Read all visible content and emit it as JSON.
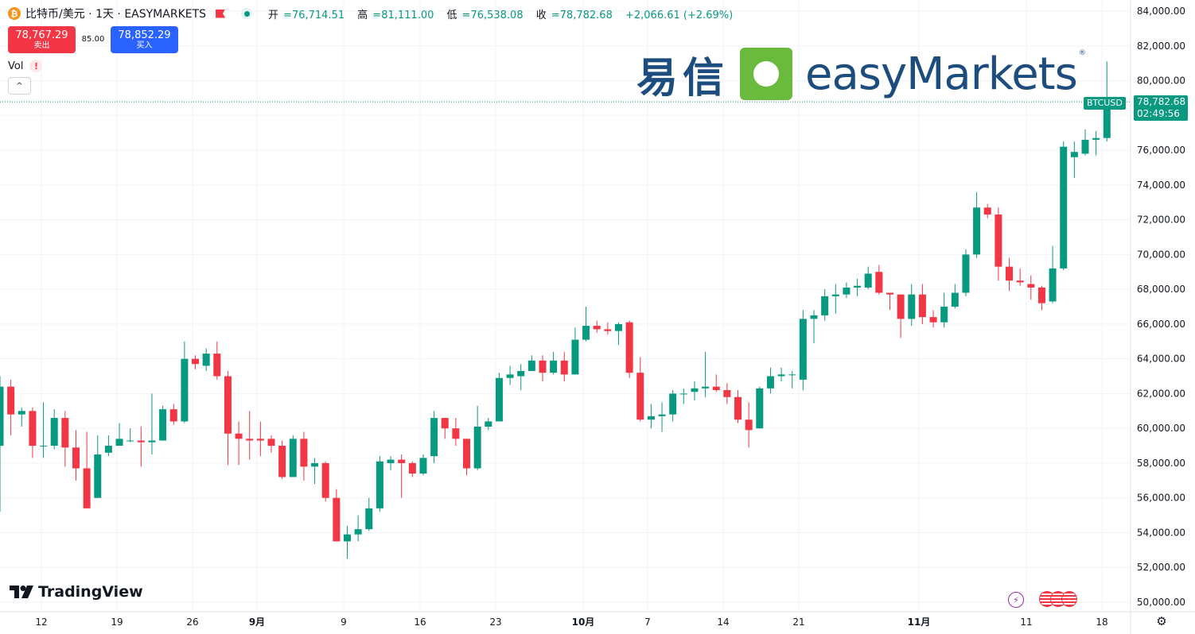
{
  "header": {
    "symbol_title": "比特币/美元 · 1天 · EASYMARKETS",
    "open_label": "开",
    "open": "76,714.51",
    "high_label": "高",
    "high": "81,111.00",
    "low_label": "低",
    "low": "76,538.08",
    "close_label": "收",
    "close": "78,782.68",
    "change": "+2,066.61 (+2.69%)"
  },
  "trade": {
    "sell_price": "78,767.29",
    "sell_label": "卖出",
    "spread": "85.00",
    "buy_price": "78,852.29",
    "buy_label": "买入"
  },
  "indicator": {
    "vol_label": "Vol",
    "warn_glyph": "!"
  },
  "logo": {
    "cn": "易信",
    "en": "easyMarkets",
    "reg": "®"
  },
  "branding": {
    "tradingview": "TradingView"
  },
  "last_price": {
    "symbol": "BTCUSD",
    "price": "78,782.68",
    "countdown": "02:49:56"
  },
  "colors": {
    "up": "#089981",
    "down": "#f23645",
    "grid": "#f0f3fa",
    "text": "#131722",
    "logo_green": "#6aba3e",
    "logo_blue": "#1d4d7f"
  },
  "icons": [
    "bitcoin-icon",
    "flag-icon",
    "market-status-icon",
    "warning-icon",
    "chevron-up-icon",
    "bolt-icon",
    "us-flag-icon",
    "settings-icon"
  ],
  "chart_data": {
    "type": "candlestick",
    "interval": "1D",
    "y_axis": {
      "min": 50000,
      "max": 84000,
      "ticks": [
        "84,000.00",
        "82,000.00",
        "80,000.00",
        "78,000.00",
        "76,000.00",
        "74,000.00",
        "72,000.00",
        "70,000.00",
        "68,000.00",
        "66,000.00",
        "64,000.00",
        "62,000.00",
        "60,000.00",
        "58,000.00",
        "56,000.00",
        "54,000.00",
        "52,000.00",
        "50,000.00"
      ]
    },
    "x_axis": {
      "ticks": [
        "12",
        "19",
        "26",
        "9月",
        "9",
        "16",
        "23",
        "10月",
        "7",
        "14",
        "21",
        "11月",
        "11",
        "18"
      ]
    },
    "last_price": 78782.68,
    "candles": [
      [
        59000,
        62400,
        63000,
        55200
      ],
      [
        62400,
        60800,
        62800,
        59600
      ],
      [
        60800,
        61000,
        61200,
        60100
      ],
      [
        61000,
        59000,
        61200,
        58300
      ],
      [
        59000,
        59000,
        61500,
        58300
      ],
      [
        59000,
        60600,
        61100,
        58800
      ],
      [
        60600,
        58900,
        61000,
        57800
      ],
      [
        58900,
        57700,
        59900,
        57000
      ],
      [
        57700,
        55400,
        59800,
        56100
      ],
      [
        56000,
        58500,
        59600,
        57200
      ],
      [
        58600,
        59000,
        59600,
        58400
      ],
      [
        59000,
        59400,
        60300,
        59100
      ],
      [
        59300,
        59300,
        60000,
        59200
      ],
      [
        59300,
        59200,
        60100,
        57800
      ],
      [
        59200,
        59300,
        62000,
        58500
      ],
      [
        59300,
        61100,
        61300,
        59300
      ],
      [
        61100,
        60400,
        61400,
        60200
      ],
      [
        60400,
        64000,
        65000,
        60300
      ],
      [
        64000,
        63700,
        64200,
        63400
      ],
      [
        63600,
        64300,
        64600,
        63300
      ],
      [
        64300,
        63000,
        65000,
        62800
      ],
      [
        63000,
        59700,
        63300,
        57900
      ],
      [
        59700,
        59400,
        60400,
        57900
      ],
      [
        59400,
        59300,
        61000,
        58200
      ],
      [
        59400,
        59300,
        60400,
        58400
      ],
      [
        59400,
        59000,
        59600,
        58600
      ],
      [
        59000,
        57200,
        59300,
        57100
      ],
      [
        57200,
        59400,
        59600,
        57200
      ],
      [
        59400,
        57800,
        59800,
        57000
      ],
      [
        57800,
        58000,
        58300,
        56800
      ],
      [
        58000,
        56000,
        58100,
        55800
      ],
      [
        56000,
        53500,
        56500,
        53500
      ],
      [
        53500,
        53900,
        54400,
        52500
      ],
      [
        53900,
        54200,
        55000,
        53500
      ],
      [
        54200,
        55400,
        56000,
        54100
      ],
      [
        55400,
        58100,
        58400,
        55200
      ],
      [
        58000,
        58200,
        58400,
        57600
      ],
      [
        58200,
        58000,
        58500,
        56000
      ],
      [
        58000,
        57400,
        58100,
        57200
      ],
      [
        57400,
        58300,
        58500,
        57300
      ],
      [
        58400,
        60600,
        61000,
        58000
      ],
      [
        60600,
        60000,
        60400,
        59400
      ],
      [
        60000,
        59400,
        60600,
        59000
      ],
      [
        59400,
        57700,
        59400,
        57300
      ],
      [
        57700,
        60100,
        61300,
        57600
      ],
      [
        60100,
        60400,
        60600,
        59900
      ],
      [
        60400,
        62900,
        63200,
        60500
      ],
      [
        62900,
        63100,
        63600,
        62500
      ],
      [
        63000,
        63300,
        63700,
        62200
      ],
      [
        63300,
        63900,
        64200,
        63400
      ],
      [
        63900,
        63200,
        64200,
        62700
      ],
      [
        63200,
        63900,
        64400,
        63100
      ],
      [
        63900,
        63100,
        64400,
        62700
      ],
      [
        63100,
        65100,
        65800,
        63100
      ],
      [
        65100,
        65900,
        67000,
        65000
      ],
      [
        65900,
        65700,
        66200,
        65500
      ],
      [
        65700,
        65600,
        66100,
        65400
      ],
      [
        65600,
        66000,
        66100,
        64800
      ],
      [
        66100,
        63200,
        66200,
        62900
      ],
      [
        63200,
        60500,
        64100,
        60400
      ],
      [
        60500,
        60700,
        61400,
        60000
      ],
      [
        60700,
        60800,
        61500,
        59800
      ],
      [
        60800,
        62000,
        62200,
        60400
      ],
      [
        62000,
        62000,
        62300,
        61400
      ],
      [
        62100,
        62300,
        62700,
        61600
      ],
      [
        62300,
        62400,
        64400,
        61800
      ],
      [
        62400,
        62200,
        63100,
        62100
      ],
      [
        62200,
        61800,
        62600,
        61400
      ],
      [
        61800,
        60500,
        62200,
        60300
      ],
      [
        60500,
        59900,
        61500,
        58900
      ],
      [
        60000,
        62300,
        62400,
        60000
      ],
      [
        62300,
        63000,
        63500,
        62000
      ],
      [
        63000,
        63100,
        63500,
        62700
      ],
      [
        63100,
        63100,
        63300,
        62300
      ],
      [
        62800,
        66300,
        66800,
        62200
      ],
      [
        66300,
        66500,
        66800,
        64900
      ],
      [
        66500,
        67600,
        68000,
        66200
      ],
      [
        67600,
        67700,
        68300,
        66600
      ],
      [
        67700,
        68100,
        68400,
        67500
      ],
      [
        68100,
        68200,
        68600,
        67600
      ],
      [
        68100,
        68900,
        69300,
        68000
      ],
      [
        69000,
        67800,
        69400,
        67700
      ],
      [
        67800,
        67700,
        67800,
        66800
      ],
      [
        67700,
        66300,
        67700,
        65200
      ],
      [
        66300,
        67700,
        68300,
        65900
      ],
      [
        67700,
        66400,
        68300,
        66000
      ],
      [
        66400,
        66100,
        66800,
        65800
      ],
      [
        66100,
        67000,
        67800,
        65800
      ],
      [
        67000,
        67800,
        68300,
        66900
      ],
      [
        67800,
        70000,
        70300,
        67600
      ],
      [
        70000,
        72700,
        73600,
        69800
      ],
      [
        72700,
        72300,
        72900,
        72100
      ],
      [
        72300,
        69300,
        72700,
        68500
      ],
      [
        69300,
        68500,
        69800,
        67900
      ],
      [
        68500,
        68400,
        69200,
        68200
      ],
      [
        68300,
        68100,
        68800,
        67400
      ],
      [
        68100,
        67200,
        68200,
        66800
      ],
      [
        67300,
        69200,
        70500,
        67200
      ],
      [
        69200,
        76200,
        76500,
        69100
      ],
      [
        75600,
        75900,
        76500,
        74400
      ],
      [
        75800,
        76600,
        77200,
        75700
      ],
      [
        76600,
        76700,
        77100,
        75700
      ],
      [
        76700,
        78800,
        81100,
        76500
      ]
    ]
  }
}
